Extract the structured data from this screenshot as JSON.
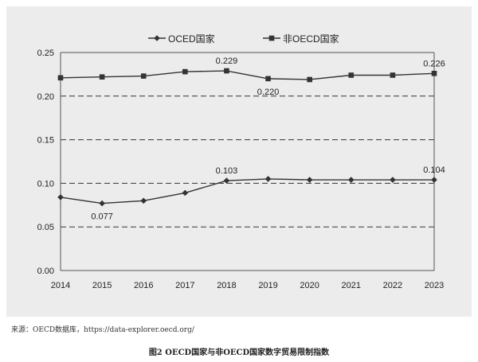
{
  "chart_data": {
    "type": "line",
    "title": "",
    "xlabel": "",
    "ylabel": "",
    "x": [
      "2014",
      "2015",
      "2016",
      "2017",
      "2018",
      "2019",
      "2020",
      "2021",
      "2022",
      "2023"
    ],
    "ylim": [
      0,
      0.25
    ],
    "yticks": [
      "0.00",
      "0.05",
      "0.10",
      "0.15",
      "0.20",
      "0.25"
    ],
    "grid": "dashed horizontal",
    "legend_position": "top",
    "series": [
      {
        "name": "OCED国家",
        "marker": "diamond",
        "values": [
          0.084,
          0.077,
          0.08,
          0.089,
          0.103,
          0.105,
          0.104,
          0.104,
          0.104,
          0.104
        ]
      },
      {
        "name": "非OECD国家",
        "marker": "square",
        "values": [
          0.221,
          0.222,
          0.223,
          0.228,
          0.229,
          0.22,
          0.219,
          0.224,
          0.224,
          0.226
        ]
      }
    ],
    "annotations": [
      {
        "series": 0,
        "index": 1,
        "text": "0.077",
        "pos": "below"
      },
      {
        "series": 0,
        "index": 4,
        "text": "0.103",
        "pos": "above"
      },
      {
        "series": 0,
        "index": 9,
        "text": "0.104",
        "pos": "above"
      },
      {
        "series": 1,
        "index": 4,
        "text": "0.229",
        "pos": "above"
      },
      {
        "series": 1,
        "index": 5,
        "text": "0.220",
        "pos": "below"
      },
      {
        "series": 1,
        "index": 9,
        "text": "0.226",
        "pos": "above"
      }
    ]
  },
  "source_note": "来源：OECD数据库，https://data-explorer.oecd.org/",
  "figure_caption": "图2  OECD国家与非OECD国家数字贸易限制指数",
  "colors": {
    "line": "#333333",
    "panel": "#ececec",
    "grid": "#333333"
  }
}
